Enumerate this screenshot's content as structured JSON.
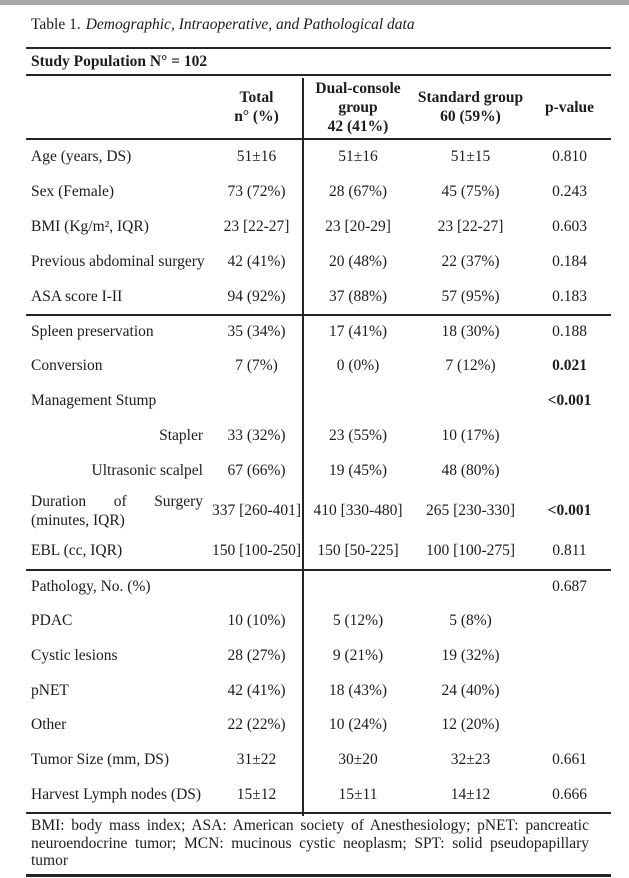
{
  "caption": {
    "prefix": "Table 1.",
    "italic": "Demographic, Intraoperative, and Pathological data"
  },
  "table": {
    "population_header": "Study Population N° = 102",
    "columns": {
      "total_lines": [
        "Total",
        "n° (%)"
      ],
      "dual_lines": [
        "Dual-console",
        "group",
        "42 (41%)"
      ],
      "standard_lines": [
        "Standard group",
        "60 (59%)"
      ],
      "pvalue": "p-value"
    },
    "rows": [
      {
        "label": "Age (years, DS)",
        "total": "51±16",
        "dual": "51±16",
        "standard": "51±15",
        "p": "0.810"
      },
      {
        "label": "Sex (Female)",
        "total": "73 (72%)",
        "dual": "28 (67%)",
        "standard": "45 (75%)",
        "p": "0.243"
      },
      {
        "label": "BMI (Kg/m², IQR)",
        "total": "23 [22-27]",
        "dual": "23 [20-29]",
        "standard": "23 [22-27]",
        "p": "0.603"
      },
      {
        "label": "Previous abdominal surgery",
        "total": "42 (41%)",
        "dual": "20 (48%)",
        "standard": "22 (37%)",
        "p": "0.184"
      },
      {
        "label": "ASA score I-II",
        "total": "94 (92%)",
        "dual": "37 (88%)",
        "standard": "57 (95%)",
        "p": "0.183"
      },
      {
        "label": "Spleen preservation",
        "total": "35 (34%)",
        "dual": "17 (41%)",
        "standard": "18 (30%)",
        "p": "0.188"
      },
      {
        "label": "Conversion",
        "total": "7 (7%)",
        "dual": "0 (0%)",
        "standard": "7 (12%)",
        "p": "0.021"
      },
      {
        "label": "Management Stump",
        "total": "",
        "dual": "",
        "standard": "",
        "p": "<0.001"
      },
      {
        "label": "Stapler",
        "total": "33 (32%)",
        "dual": "23 (55%)",
        "standard": "10 (17%)",
        "p": ""
      },
      {
        "label": "Ultrasonic scalpel",
        "total": "67 (66%)",
        "dual": "19 (45%)",
        "standard": "48 (80%)",
        "p": ""
      },
      {
        "label_words": [
          "Duration",
          "of",
          "Surgery"
        ],
        "label_line2": "(minutes, IQR)",
        "total": "337 [260-401]",
        "dual": "410 [330-480]",
        "standard": "265 [230-330]",
        "p": "<0.001"
      },
      {
        "label": "EBL (cc, IQR)",
        "total": "150 [100-250]",
        "dual": "150 [50-225]",
        "standard": "100 [100-275]",
        "p": "0.811"
      },
      {
        "label": "Pathology, No. (%)",
        "total": "",
        "dual": "",
        "standard": "",
        "p": "0.687"
      },
      {
        "label": "PDAC",
        "total": "10 (10%)",
        "dual": "5 (12%)",
        "standard": "5 (8%)",
        "p": ""
      },
      {
        "label": "Cystic lesions",
        "total": "28 (27%)",
        "dual": "9 (21%)",
        "standard": "19 (32%)",
        "p": ""
      },
      {
        "label": "pNET",
        "total": "42 (41%)",
        "dual": "18 (43%)",
        "standard": "24 (40%)",
        "p": ""
      },
      {
        "label": "Other",
        "total": "22 (22%)",
        "dual": "10 (24%)",
        "standard": "12 (20%)",
        "p": ""
      },
      {
        "label": "Tumor Size (mm, DS)",
        "total": "31±22",
        "dual": "30±20",
        "standard": "32±23",
        "p": "0.661"
      },
      {
        "label": "Harvest Lymph nodes (DS)",
        "total": "15±12",
        "dual": "15±11",
        "standard": "14±12",
        "p": "0.666"
      }
    ],
    "footnote": "BMI: body mass index; ASA: American society of Anesthesiology; pNET: pancreatic neuroendocrine tumor; MCN: mucinous cystic neoplasm; SPT: solid pseudopapillary tumor"
  }
}
